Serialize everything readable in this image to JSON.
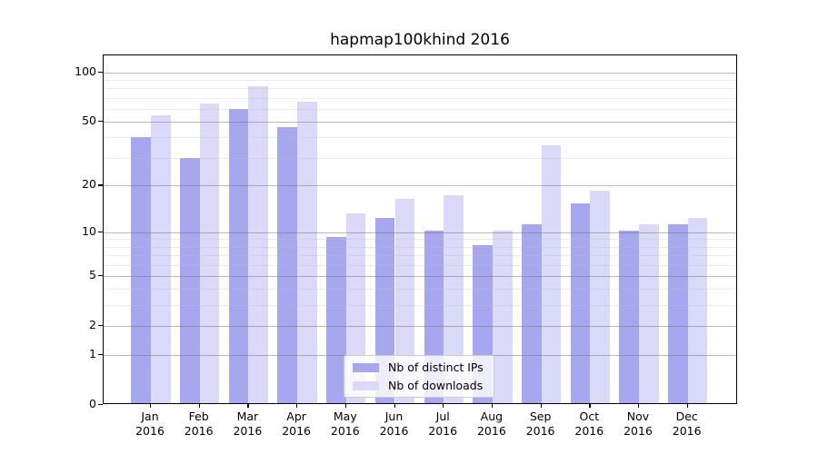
{
  "chart_data": {
    "type": "bar",
    "title": "hapmap100khind 2016",
    "categories": [
      "Jan",
      "Feb",
      "Mar",
      "Apr",
      "May",
      "Jun",
      "Jul",
      "Aug",
      "Sep",
      "Oct",
      "Nov",
      "Dec"
    ],
    "x_year": "2016",
    "series": [
      {
        "name": "Nb of distinct IPs",
        "color": "#a7a7f0",
        "values": [
          39,
          29,
          58,
          45,
          9,
          12,
          10,
          8,
          11,
          15,
          10,
          11
        ]
      },
      {
        "name": "Nb of downloads",
        "color": "#dadaf8",
        "values": [
          53,
          63,
          80,
          65,
          13,
          16,
          17,
          10,
          35,
          18,
          11,
          12
        ]
      }
    ],
    "yscale": "log1p",
    "ylim": [
      0,
      127
    ],
    "yticks": [
      0,
      1,
      2,
      5,
      10,
      20,
      50,
      100
    ],
    "minor_yticks": [
      3,
      4,
      6,
      7,
      8,
      9,
      30,
      40,
      60,
      70,
      80,
      90
    ],
    "grid": true,
    "legend_position": "lower center",
    "colors": {
      "spine": "#000000",
      "major_grid": "#b8b8b8",
      "minor_grid": "#e9e9e9",
      "background": "#ffffff"
    }
  }
}
